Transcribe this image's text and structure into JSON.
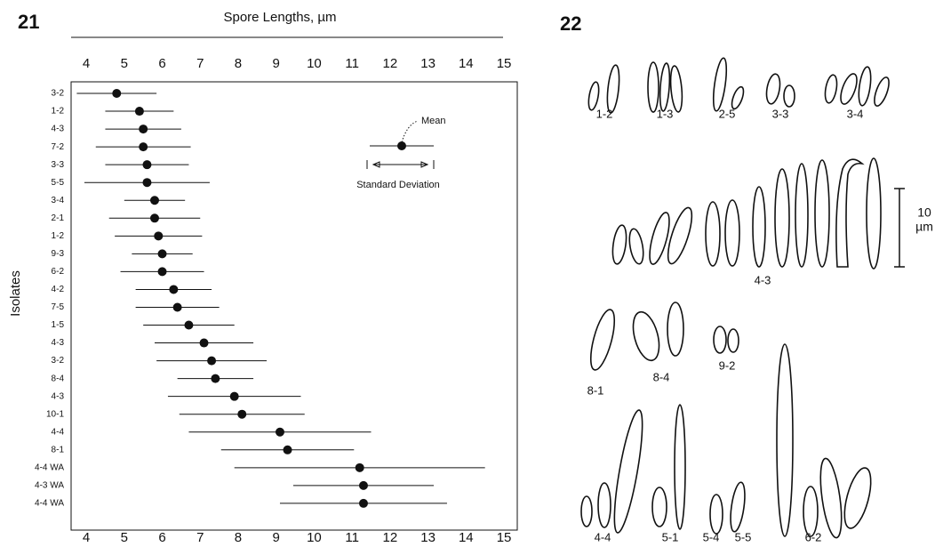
{
  "chart_data": {
    "type": "errorbar",
    "panel_label": "21",
    "title": "Spore Lengths, µm",
    "y_label": "Isolates",
    "categories": [
      "3-2",
      "1-2",
      "4-3",
      "7-2",
      "3-3",
      "5-5",
      "3-4",
      "2-1",
      "1-2",
      "9-3",
      "6-2",
      "4-2",
      "7-5",
      "1-5",
      "4-3",
      "3-2",
      "8-4",
      "4-3",
      "10-1",
      "4-4",
      "8-1",
      "4-4 WA",
      "4-3 WA",
      "4-4 WA"
    ],
    "values": [
      4.8,
      5.4,
      5.5,
      5.5,
      5.6,
      5.6,
      5.8,
      5.8,
      5.9,
      6.0,
      6.0,
      6.3,
      6.4,
      6.7,
      7.1,
      7.3,
      7.4,
      7.9,
      8.1,
      9.1,
      9.3,
      11.2,
      11.3,
      11.3
    ],
    "errors": [
      1.05,
      0.9,
      1.0,
      1.25,
      1.1,
      1.65,
      0.8,
      1.2,
      1.15,
      0.8,
      1.1,
      1.0,
      1.1,
      1.2,
      1.3,
      1.45,
      1.0,
      1.75,
      1.65,
      2.4,
      1.75,
      3.3,
      1.85,
      2.2
    ],
    "color": "#111111",
    "xlim": [
      3.6,
      15.35
    ],
    "xticks": [
      4,
      5,
      6,
      7,
      8,
      9,
      10,
      11,
      12,
      13,
      14,
      15
    ],
    "annotations": [
      "Mean",
      "Standard Deviation"
    ]
  },
  "figure_22": {
    "panel_label": "22",
    "groups": [
      "1-2",
      "1-3",
      "2-5",
      "3-3",
      "3-4",
      "4-3",
      "8-1",
      "8-4",
      "9-2",
      "4-4",
      "5-1",
      "5-4",
      "5-5",
      "6-2"
    ],
    "scale_label": [
      "10",
      "µm"
    ]
  }
}
